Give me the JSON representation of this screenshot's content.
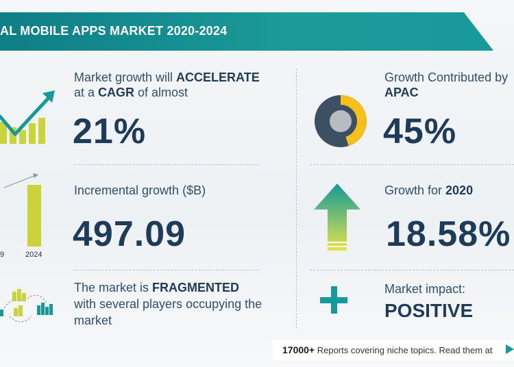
{
  "header": {
    "title": "AL MOBILE APPS MARKET 2020-2024"
  },
  "stats": {
    "cagr": {
      "line1_prefix": "Market growth will ",
      "line1_emph": "ACCELERATE",
      "line2_prefix": "at a ",
      "line2_emph": "CAGR",
      "line2_suffix": " of almost",
      "value": "21%"
    },
    "incremental": {
      "label": "Incremental growth ($B)",
      "value": "497.09"
    },
    "market": {
      "line1_prefix": "The market is ",
      "line1_emph": "FRAGMENTED",
      "line2": "with several players occupying the",
      "line3": "market"
    },
    "region": {
      "line1": "Growth Contributed by",
      "line2": "APAC",
      "value": "45%",
      "share": 0.45
    },
    "growth_2020": {
      "label_prefix": "Growth for ",
      "label_emph": "2020",
      "value": "18.58%"
    },
    "impact": {
      "label": "Market impact:",
      "value": "POSITIVE"
    }
  },
  "mini_chart": {
    "labels": [
      "9",
      "2024"
    ]
  },
  "footer": {
    "count": "17000+",
    "text": " Reports covering niche topics. Read them at"
  },
  "colors": {
    "teal": "#149a9a",
    "navy": "#1f3b5a",
    "lime": "#c9d33a",
    "yellow": "#f6bf1c",
    "slate": "#3c4f63"
  }
}
